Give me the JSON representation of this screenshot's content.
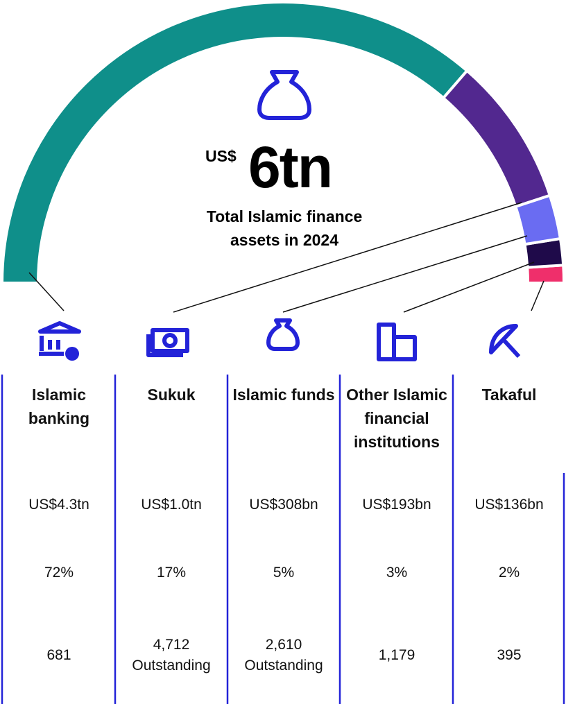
{
  "chart_data": {
    "type": "semi-donut",
    "center_prefix": "US$",
    "center_value": "6tn",
    "subtitle": "Total Islamic finance assets in 2024",
    "categories": [
      "Islamic banking",
      "Sukuk",
      "Islamic funds",
      "Other Islamic financial institutions",
      "Takaful"
    ],
    "values": [
      72,
      17,
      5,
      3,
      2
    ],
    "value_labels": [
      "72%",
      "17%",
      "5%",
      "3%",
      "2%"
    ],
    "colors": [
      "#0f8f8a",
      "#52288f",
      "#6a6cf2",
      "#1f0a4a",
      "#ef2f6b"
    ]
  },
  "table": {
    "amounts": [
      "US$4.3tn",
      "US$1.0tn",
      "US$308bn",
      "US$193bn",
      "US$136bn"
    ],
    "counts": [
      "681",
      "4,712 Outstanding",
      "2,610 Outstanding",
      "1,179",
      "395"
    ]
  }
}
